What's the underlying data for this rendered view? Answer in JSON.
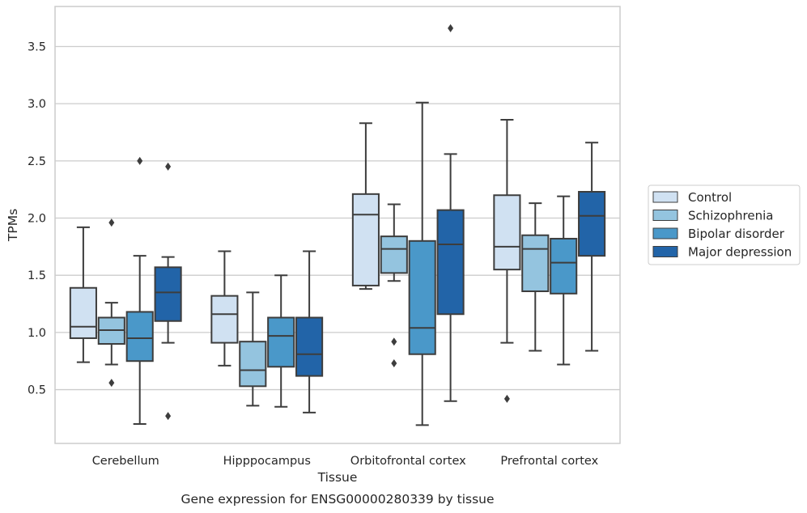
{
  "chart_data": {
    "type": "boxplot",
    "caption": "Gene expression for ENSG00000280339 by tissue",
    "xlabel": "Tissue",
    "ylabel": "TPMs",
    "ylim": [
      0.03,
      3.85
    ],
    "yticks": [
      "0.5",
      "1.0",
      "1.5",
      "2.0",
      "2.5",
      "3.0",
      "3.5"
    ],
    "grid": "horizontal",
    "legend_position": "right",
    "categories": [
      "Cerebellum",
      "Hipppocampus",
      "Orbitofrontal cortex",
      "Prefrontal cortex"
    ],
    "series": [
      {
        "name": "Control",
        "color": "#d0e1f2",
        "boxes": [
          {
            "whislo": 0.74,
            "q1": 0.95,
            "med": 1.05,
            "q3": 1.39,
            "whishi": 1.92,
            "fliers": []
          },
          {
            "whislo": 0.71,
            "q1": 0.91,
            "med": 1.16,
            "q3": 1.32,
            "whishi": 1.71,
            "fliers": []
          },
          {
            "whislo": 1.38,
            "q1": 1.41,
            "med": 2.03,
            "q3": 2.21,
            "whishi": 2.83,
            "fliers": []
          },
          {
            "whislo": 0.91,
            "q1": 1.55,
            "med": 1.75,
            "q3": 2.2,
            "whishi": 2.86,
            "fliers": [
              0.42
            ]
          }
        ]
      },
      {
        "name": "Schizophrenia",
        "color": "#94c4df",
        "boxes": [
          {
            "whislo": 0.72,
            "q1": 0.9,
            "med": 1.02,
            "q3": 1.13,
            "whishi": 1.26,
            "fliers": [
              0.56,
              1.96
            ]
          },
          {
            "whislo": 0.36,
            "q1": 0.53,
            "med": 0.67,
            "q3": 0.92,
            "whishi": 1.35,
            "fliers": []
          },
          {
            "whislo": 1.45,
            "q1": 1.52,
            "med": 1.73,
            "q3": 1.84,
            "whishi": 2.12,
            "fliers": [
              0.92,
              0.73
            ]
          },
          {
            "whislo": 0.84,
            "q1": 1.36,
            "med": 1.73,
            "q3": 1.85,
            "whishi": 2.13,
            "fliers": []
          }
        ]
      },
      {
        "name": "Bipolar disorder",
        "color": "#4a98c9",
        "boxes": [
          {
            "whislo": 0.2,
            "q1": 0.75,
            "med": 0.95,
            "q3": 1.18,
            "whishi": 1.67,
            "fliers": [
              2.5
            ]
          },
          {
            "whislo": 0.35,
            "q1": 0.7,
            "med": 0.97,
            "q3": 1.13,
            "whishi": 1.5,
            "fliers": []
          },
          {
            "whislo": 0.19,
            "q1": 0.81,
            "med": 1.04,
            "q3": 1.8,
            "whishi": 3.01,
            "fliers": []
          },
          {
            "whislo": 0.72,
            "q1": 1.34,
            "med": 1.61,
            "q3": 1.82,
            "whishi": 2.19,
            "fliers": []
          }
        ]
      },
      {
        "name": "Major depression",
        "color": "#2264a8",
        "boxes": [
          {
            "whislo": 0.91,
            "q1": 1.1,
            "med": 1.35,
            "q3": 1.57,
            "whishi": 1.66,
            "fliers": [
              2.45,
              0.27
            ]
          },
          {
            "whislo": 0.3,
            "q1": 0.62,
            "med": 0.81,
            "q3": 1.13,
            "whishi": 1.71,
            "fliers": []
          },
          {
            "whislo": 0.4,
            "q1": 1.16,
            "med": 1.77,
            "q3": 2.07,
            "whishi": 2.56,
            "fliers": [
              3.66
            ]
          },
          {
            "whislo": 0.84,
            "q1": 1.67,
            "med": 2.02,
            "q3": 2.23,
            "whishi": 2.66,
            "fliers": []
          }
        ]
      }
    ]
  }
}
